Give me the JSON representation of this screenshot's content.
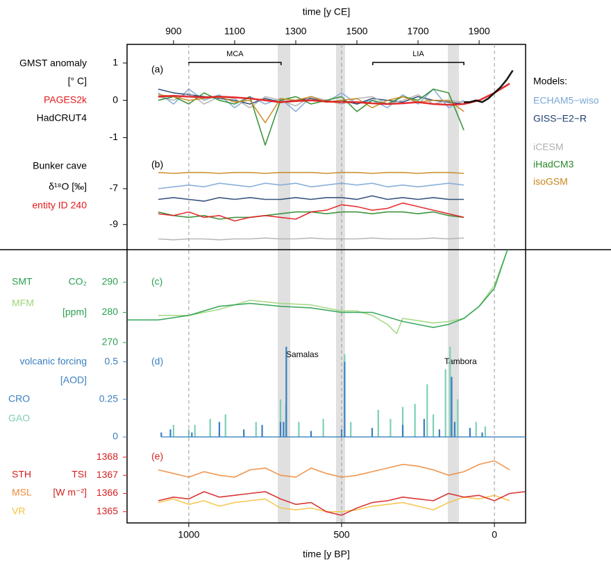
{
  "chart_data": [
    {
      "type": "line",
      "panel_label": "(a)",
      "ylabel": [
        "GMST anomaly",
        "[° C]"
      ],
      "legend_title": "Models:",
      "x2label": "time [y CE]",
      "x2lim": [
        748,
        2052
      ],
      "x2ticks": [
        900,
        1100,
        1300,
        1500,
        1700,
        1900
      ],
      "xlim": [
        1202,
        -102
      ],
      "ylim": [
        -1.55,
        1.5
      ],
      "yticks": [
        1,
        0,
        -1
      ],
      "tick_color": "#000000",
      "periods": [
        {
          "label": "MCA",
          "start": 1000,
          "end": 698
        },
        {
          "label": "LIA",
          "start": 398,
          "end": 100
        }
      ],
      "x": [
        1100,
        1050,
        1000,
        950,
        900,
        850,
        800,
        750,
        700,
        650,
        600,
        550,
        500,
        450,
        400,
        350,
        300,
        250,
        200,
        150,
        100
      ],
      "series": [
        {
          "name": "ECHAM5−wiso",
          "color": "#7ba7d6",
          "values": [
            0.2,
            -0.1,
            0.3,
            0.0,
            0.15,
            -0.2,
            0.1,
            -0.1,
            0.05,
            -0.3,
            0.1,
            -0.05,
            0.2,
            -0.1,
            0.0,
            -0.2,
            0.15,
            -0.1,
            0.3,
            -0.2,
            0.0
          ]
        },
        {
          "name": "GISS−E2−R",
          "color": "#1f3f6e",
          "values": [
            0.3,
            0.2,
            0.15,
            0.1,
            0.05,
            0.0,
            -0.1,
            0.05,
            -0.05,
            0.0,
            0.05,
            -0.05,
            0.0,
            -0.1,
            0.05,
            0.0,
            -0.05,
            0.1,
            0.0,
            -0.05,
            -0.1
          ]
        },
        {
          "name": "iCESM",
          "color": "#b0b0b0",
          "values": [
            0.1,
            0.0,
            0.2,
            -0.1,
            0.1,
            0.05,
            -0.2,
            0.1,
            0.0,
            -0.15,
            0.1,
            0.0,
            -0.1,
            0.05,
            0.1,
            -0.1,
            0.0,
            0.15,
            -0.1,
            0.0,
            -0.05
          ]
        },
        {
          "name": "iHadCM3",
          "color": "#2a8a2a",
          "values": [
            0.0,
            0.1,
            -0.1,
            0.2,
            0.0,
            -0.1,
            0.1,
            -1.2,
            0.0,
            0.1,
            -0.1,
            0.0,
            0.1,
            -0.3,
            0.0,
            -0.1,
            0.1,
            0.0,
            0.3,
            0.2,
            -0.8
          ]
        },
        {
          "name": "isoGSM",
          "color": "#c8861a",
          "values": [
            0.15,
            0.1,
            0.0,
            0.05,
            0.1,
            -0.05,
            0.0,
            -0.6,
            0.05,
            0.0,
            0.1,
            -0.05,
            0.0,
            0.05,
            -0.2,
            0.0,
            0.1,
            -0.05,
            0.0,
            0.0,
            -0.3
          ]
        },
        {
          "name": "PAGES2k",
          "color": "#e31a1c",
          "x": [
            1100,
            1050,
            1000,
            950,
            900,
            850,
            800,
            750,
            700,
            650,
            600,
            550,
            500,
            450,
            400,
            350,
            300,
            250,
            200,
            150,
            100,
            50,
            0,
            -50
          ],
          "values": [
            0.1,
            0.12,
            0.1,
            0.08,
            0.1,
            0.08,
            0.05,
            0.0,
            -0.05,
            -0.02,
            0.0,
            -0.03,
            -0.05,
            -0.05,
            -0.08,
            -0.1,
            -0.08,
            -0.05,
            -0.1,
            -0.12,
            -0.1,
            0.0,
            0.2,
            0.45
          ]
        },
        {
          "name": "HadCRUT4",
          "color": "#000000",
          "x": [
            100,
            80,
            60,
            40,
            20,
            0,
            -20,
            -40,
            -60
          ],
          "values": [
            -0.05,
            -0.05,
            0.0,
            -0.05,
            0.05,
            0.2,
            0.35,
            0.55,
            0.8
          ]
        }
      ]
    },
    {
      "type": "line",
      "panel_label": "(b)",
      "ylabel": [
        "Bunker cave",
        "δ¹⁸O [‰]"
      ],
      "xlim": [
        1202,
        -102
      ],
      "ylim": [
        -10.4,
        -5.3
      ],
      "yticks": [
        -7,
        -9
      ],
      "tick_color": "#000000",
      "x": [
        1100,
        1050,
        1000,
        950,
        900,
        850,
        800,
        750,
        700,
        650,
        600,
        550,
        500,
        450,
        400,
        350,
        300,
        250,
        200,
        150,
        100
      ],
      "series": [
        {
          "color": "#7ba7d6",
          "values": [
            -7.0,
            -6.9,
            -6.8,
            -6.9,
            -6.7,
            -6.8,
            -6.9,
            -6.7,
            -6.8,
            -6.7,
            -6.9,
            -6.8,
            -6.7,
            -6.8,
            -6.7,
            -6.9,
            -6.8,
            -6.9,
            -6.8,
            -6.7,
            -6.8
          ]
        },
        {
          "color": "#1f3f6e",
          "values": [
            -7.6,
            -7.5,
            -7.6,
            -7.7,
            -7.5,
            -7.6,
            -7.5,
            -7.6,
            -7.6,
            -7.5,
            -7.6,
            -7.5,
            -7.5,
            -7.6,
            -7.4,
            -7.6,
            -7.5,
            -7.6,
            -7.5,
            -7.6,
            -7.6
          ]
        },
        {
          "color": "#b0b0b0",
          "values": [
            -9.8,
            -9.85,
            -9.8,
            -9.8,
            -9.85,
            -9.8,
            -9.8,
            -9.75,
            -9.8,
            -9.8,
            -9.75,
            -9.8,
            -9.8,
            -9.8,
            -9.75,
            -9.8,
            -9.8,
            -9.8,
            -9.75,
            -9.8,
            -9.75
          ]
        },
        {
          "color": "#2a8a2a",
          "values": [
            -8.3,
            -8.5,
            -8.6,
            -8.5,
            -8.7,
            -8.6,
            -8.6,
            -8.5,
            -8.4,
            -8.3,
            -8.3,
            -8.4,
            -8.3,
            -8.3,
            -8.4,
            -8.3,
            -8.3,
            -8.4,
            -8.3,
            -8.5,
            -8.6
          ]
        },
        {
          "color": "#c8861a",
          "values": [
            -6.1,
            -6.15,
            -6.1,
            -6.1,
            -6.15,
            -6.1,
            -6.1,
            -6.15,
            -6.1,
            -6.1,
            -6.1,
            -6.15,
            -6.1,
            -6.1,
            -6.15,
            -6.1,
            -6.1,
            -6.15,
            -6.1,
            -6.1,
            -6.15
          ]
        },
        {
          "name": "entity ID 240",
          "color": "#e31a1c",
          "values": [
            -8.4,
            -8.5,
            -8.3,
            -8.6,
            -8.5,
            -8.8,
            -8.6,
            -8.5,
            -8.6,
            -8.7,
            -8.3,
            -8.2,
            -7.9,
            -8.0,
            -8.2,
            -8.1,
            -7.8,
            -8.0,
            -8.2,
            -8.4,
            -8.6
          ]
        }
      ]
    },
    {
      "type": "line",
      "panel_label": "(c)",
      "ylabel": [
        "CO₂",
        "[ppm]"
      ],
      "xlim": [
        1202,
        -102
      ],
      "ylim": [
        268.6,
        300.8
      ],
      "yticks": [
        290,
        280,
        270
      ],
      "tick_color": "#2aa050",
      "series": [
        {
          "name": "MFM",
          "color": "#9ed67a",
          "x": [
            1100,
            1000,
            900,
            800,
            700,
            600,
            500,
            450,
            400,
            350,
            320,
            300,
            200,
            150,
            100,
            50,
            0,
            -40
          ],
          "values": [
            279,
            279,
            281,
            284,
            283,
            282.5,
            280.5,
            280.5,
            279,
            276,
            273,
            278,
            276.5,
            277,
            278,
            282,
            289,
            300
          ]
        },
        {
          "name": "SMT",
          "color": "#2aa050",
          "x": [
            1200,
            1100,
            1000,
            900,
            800,
            700,
            600,
            500,
            400,
            300,
            200,
            150,
            100,
            50,
            0,
            -40,
            -60
          ],
          "values": [
            277.5,
            277.5,
            279,
            282,
            283,
            282,
            281.5,
            280,
            280,
            277,
            275,
            276,
            278,
            282,
            288,
            300,
            304
          ]
        }
      ]
    },
    {
      "type": "bar",
      "panel_label": "(d)",
      "ylabel": [
        "volcanic forcing",
        "[AOD]"
      ],
      "annotations": [
        "Samalas",
        "Tambora"
      ],
      "xlim": [
        1202,
        -102
      ],
      "ylim": [
        -0.046,
        0.6
      ],
      "yticks": [
        0.5,
        0.25,
        0
      ],
      "tick_color": "#3a7fc0",
      "series": [
        {
          "name": "GAO",
          "color": "#7ccfb8",
          "x": [
            1050,
            1000,
            980,
            930,
            880,
            780,
            700,
            682,
            640,
            560,
            490,
            470,
            380,
            340,
            300,
            260,
            220,
            200,
            160,
            145,
            120,
            60,
            30
          ],
          "values": [
            0.08,
            0.05,
            0.08,
            0.12,
            0.15,
            0.1,
            0.25,
            0.22,
            0.1,
            0.12,
            0.55,
            0.1,
            0.18,
            0.12,
            0.2,
            0.22,
            0.35,
            0.15,
            0.45,
            0.6,
            0.25,
            0.1,
            0.07
          ]
        },
        {
          "name": "CRO",
          "color": "#3a7fc0",
          "x": [
            1090,
            1060,
            990,
            900,
            820,
            760,
            700,
            690,
            681,
            600,
            500,
            490,
            400,
            300,
            230,
            180,
            140,
            130,
            80,
            40
          ],
          "values": [
            0.03,
            0.05,
            0.03,
            0.1,
            0.05,
            0.08,
            0.1,
            0.1,
            0.62,
            0.04,
            0.05,
            0.5,
            0.06,
            0.08,
            0.12,
            0.05,
            0.4,
            0.1,
            0.06,
            0.03
          ]
        }
      ]
    },
    {
      "type": "line",
      "panel_label": "(e)",
      "ylabel": [
        "TSI",
        "[W m⁻²]"
      ],
      "xlabel": "time [y BP]",
      "xlim": [
        1202,
        -102
      ],
      "ylim": [
        1364.38,
        1368.73
      ],
      "yticks": [
        1368,
        1367,
        1366,
        1365
      ],
      "xticks": [
        1000,
        500,
        0
      ],
      "tick_color": "#d62020",
      "series": [
        {
          "name": "MSL",
          "color": "#f08a3a",
          "x": [
            1100,
            1050,
            1000,
            950,
            900,
            850,
            800,
            750,
            700,
            650,
            600,
            550,
            500,
            450,
            400,
            350,
            300,
            250,
            200,
            150,
            100,
            50,
            0,
            -50
          ],
          "values": [
            1367.3,
            1367.1,
            1366.9,
            1367.2,
            1367.0,
            1366.9,
            1367.3,
            1367.4,
            1367.0,
            1366.9,
            1367.4,
            1367.1,
            1366.9,
            1367.0,
            1367.2,
            1367.4,
            1367.6,
            1367.5,
            1367.3,
            1367.0,
            1367.2,
            1367.6,
            1367.8,
            1367.3
          ]
        },
        {
          "name": "VR",
          "color": "#f6c140",
          "x": [
            1100,
            1050,
            1000,
            950,
            900,
            850,
            800,
            750,
            700,
            650,
            600,
            550,
            500,
            450,
            400,
            350,
            300,
            250,
            200,
            150,
            100,
            50,
            0,
            -50
          ],
          "values": [
            1365.5,
            1365.7,
            1365.4,
            1365.6,
            1365.3,
            1365.5,
            1365.6,
            1365.7,
            1365.2,
            1365.1,
            1365.2,
            1365.0,
            1365.0,
            1365.1,
            1365.3,
            1365.4,
            1365.5,
            1365.3,
            1365.1,
            1365.5,
            1365.8,
            1365.7,
            1365.9,
            1365.6
          ]
        },
        {
          "name": "STH",
          "color": "#d62020",
          "x": [
            1100,
            1050,
            1000,
            950,
            900,
            850,
            800,
            750,
            700,
            650,
            600,
            550,
            500,
            450,
            400,
            350,
            300,
            250,
            200,
            150,
            100,
            50,
            0,
            -50,
            -100
          ],
          "values": [
            1365.6,
            1365.8,
            1365.7,
            1366.1,
            1365.8,
            1365.9,
            1366.0,
            1366.1,
            1365.7,
            1365.4,
            1365.5,
            1365.0,
            1364.8,
            1365.2,
            1365.5,
            1365.6,
            1365.8,
            1365.7,
            1365.6,
            1366.0,
            1365.8,
            1365.9,
            1365.6,
            1366.0,
            1366.1
          ]
        }
      ]
    }
  ]
}
